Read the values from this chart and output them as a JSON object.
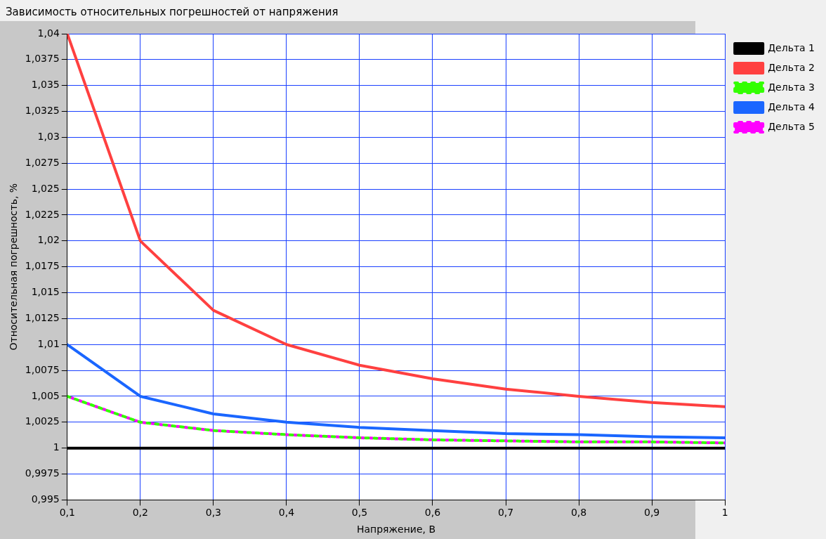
{
  "chart_data": {
    "type": "line",
    "title": "Зависимость относительных погрешностей от напряжения",
    "xlabel": "Напряжение, В",
    "ylabel": "Относительная погрешность, %",
    "x": [
      0.1,
      0.2,
      0.3,
      0.4,
      0.5,
      0.6,
      0.7,
      0.8,
      0.9,
      1
    ],
    "series": [
      {
        "name": "Дельта 1",
        "color": "#000000",
        "values": [
          1,
          1,
          1,
          1,
          1,
          1,
          1,
          1,
          1,
          1
        ]
      },
      {
        "name": "Дельта 2",
        "color": "#ff4040",
        "values": [
          1.04,
          1.02,
          1.0133,
          1.01,
          1.008,
          1.0067,
          1.0057,
          1.005,
          1.0044,
          1.004
        ]
      },
      {
        "name": "Дельта 3",
        "color": "#33ff00",
        "line_style": "dotted",
        "values": [
          1.005,
          1.0025,
          1.0017,
          1.0013,
          1.001,
          1.0008,
          1.0007,
          1.0006,
          1.0006,
          1.0005
        ]
      },
      {
        "name": "Дельта 4",
        "color": "#1a66ff",
        "values": [
          1.01,
          1.005,
          1.0033,
          1.0025,
          1.002,
          1.0017,
          1.0014,
          1.0013,
          1.0011,
          1.001
        ]
      },
      {
        "name": "Дельта 5",
        "color": "#ff00ff",
        "line_style": "dotted",
        "values": [
          1.005,
          1.0025,
          1.0017,
          1.0013,
          1.001,
          1.0008,
          1.0007,
          1.0006,
          1.0006,
          1.0005
        ]
      }
    ],
    "xlim": [
      0.1,
      1
    ],
    "xticks": [
      {
        "value": 0.1,
        "label": "0,1"
      },
      {
        "value": 0.2,
        "label": "0,2"
      },
      {
        "value": 0.3,
        "label": "0,3"
      },
      {
        "value": 0.4,
        "label": "0,4"
      },
      {
        "value": 0.5,
        "label": "0,5"
      },
      {
        "value": 0.6,
        "label": "0,6"
      },
      {
        "value": 0.7,
        "label": "0,7"
      },
      {
        "value": 0.8,
        "label": "0,8"
      },
      {
        "value": 0.9,
        "label": "0,9"
      },
      1
    ],
    "ylim": [
      0.995,
      1.04
    ],
    "yticks": [
      {
        "value": 0.995,
        "label": "0,995"
      },
      {
        "value": 0.9975,
        "label": "0,9975"
      },
      1,
      {
        "value": 1.0025,
        "label": "1,0025"
      },
      {
        "value": 1.005,
        "label": "1,005"
      },
      {
        "value": 1.0075,
        "label": "1,0075"
      },
      {
        "value": 1.01,
        "label": "1,01"
      },
      {
        "value": 1.0125,
        "label": "1,0125"
      },
      {
        "value": 1.015,
        "label": "1,015"
      },
      {
        "value": 1.0175,
        "label": "1,0175"
      },
      {
        "value": 1.02,
        "label": "1,02"
      },
      {
        "value": 1.0225,
        "label": "1,0225"
      },
      {
        "value": 1.025,
        "label": "1,025"
      },
      {
        "value": 1.0275,
        "label": "1,0275"
      },
      {
        "value": 1.03,
        "label": "1,03"
      },
      {
        "value": 1.0325,
        "label": "1,0325"
      },
      {
        "value": 1.035,
        "label": "1,035"
      },
      {
        "value": 1.0375,
        "label": "1,0375"
      },
      {
        "value": 1.04,
        "label": "1,04"
      }
    ],
    "grid": true,
    "legend": "top right",
    "marker": "none",
    "line_style": "solid"
  }
}
